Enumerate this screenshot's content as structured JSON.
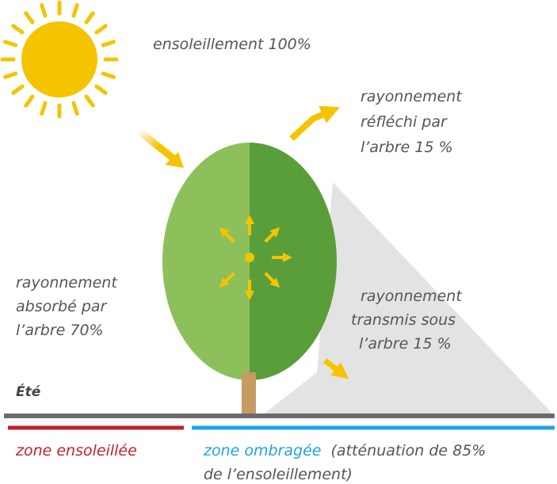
{
  "sun_label": "ensoleillement 100%",
  "reflected": {
    "lines": [
      "rayonnement",
      "réfléchi par",
      "l’arbre 15 %"
    ]
  },
  "absorbed": {
    "lines": [
      "rayonnement",
      "absorbé par",
      "l’arbre 70%"
    ]
  },
  "transmitted": {
    "lines": [
      "rayonnement",
      "transmis sous",
      "l’arbre 15 %"
    ]
  },
  "season": "Été",
  "sunny_zone": "zone ensoleillée",
  "shaded_zone": {
    "name": "zone ombragée",
    "note": [
      "(atténuation de 85%",
      "de l’ensoleillement)"
    ]
  }
}
